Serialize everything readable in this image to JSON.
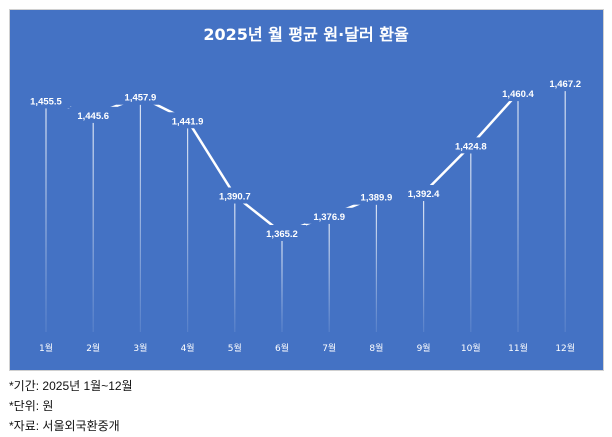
{
  "chart_data": {
    "type": "line",
    "title": "2025년 월 평균 원·달러 환율",
    "categories": [
      "1월",
      "2월",
      "3월",
      "4월",
      "5월",
      "6월",
      "7월",
      "8월",
      "9월",
      "10월",
      "11월",
      "12월"
    ],
    "values": [
      1455.5,
      1445.6,
      1457.9,
      1441.9,
      1390.7,
      1365.2,
      1376.9,
      1389.9,
      1392.4,
      1424.8,
      1460.4,
      1467.2
    ],
    "labels": [
      "1,455.5",
      "1,445.6",
      "1,457.9",
      "1,441.9",
      "1,390.7",
      "1,365.2",
      "1,376.9",
      "1,389.9",
      "1,392.4",
      "1,424.8",
      "1,460.4",
      "1,467.2"
    ],
    "drop_lines": true,
    "grid": false,
    "colors": {
      "background": "#4472C4",
      "line": "#FFFFFF",
      "text": "#FFFFFF"
    }
  },
  "notes": [
    "*기간: 2025년 1월~12월",
    "*단위: 원",
    "*자료: 서울외국환중개"
  ]
}
